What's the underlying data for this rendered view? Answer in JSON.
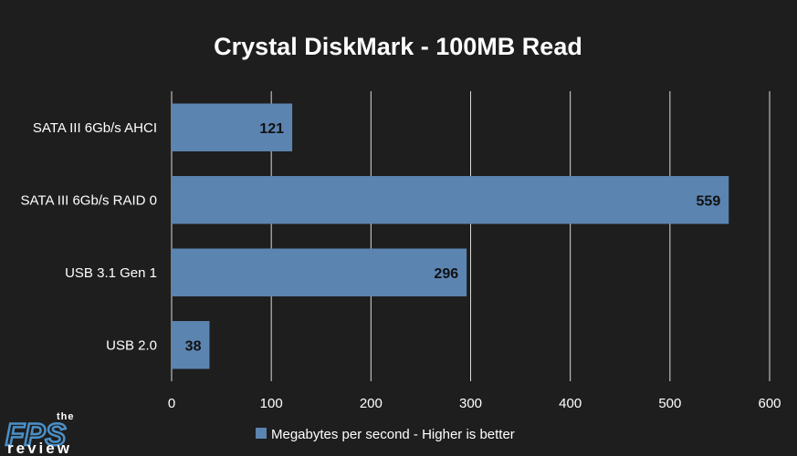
{
  "chart_data": {
    "type": "bar",
    "orientation": "horizontal",
    "title": "Crystal DiskMark - 100MB Read",
    "categories": [
      "SATA III 6Gb/s AHCI",
      "SATA III 6Gb/s RAID 0",
      "USB 3.1 Gen 1",
      "USB 2.0"
    ],
    "series": [
      {
        "name": "Megabytes per second - Higher is better",
        "values": [
          121,
          559,
          296,
          38
        ]
      }
    ],
    "xlim": [
      0,
      600
    ],
    "xticks": [
      0,
      100,
      200,
      300,
      400,
      500,
      600
    ],
    "grid": true,
    "legend": "bottom",
    "colors": {
      "background": "#1e1e1e",
      "bar": "#5b84b1",
      "grid": "#d9d9d9",
      "text": "#ffffff",
      "label": "#111111"
    }
  },
  "logo": {
    "top": "the",
    "main": "FPS",
    "bottom": "review"
  }
}
